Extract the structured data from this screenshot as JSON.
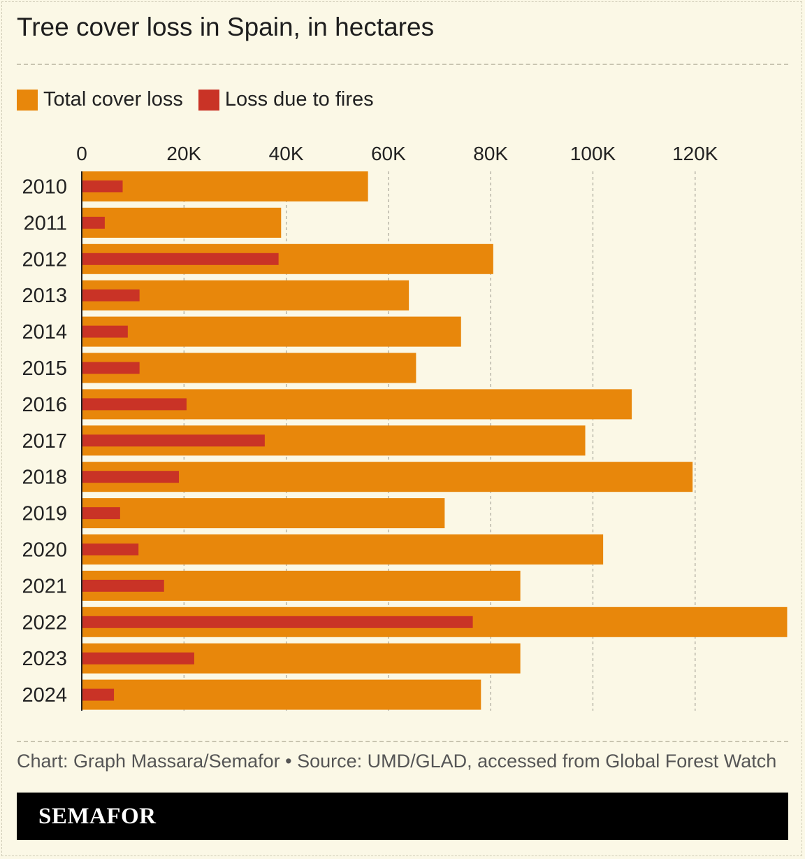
{
  "title": "Tree cover loss in Spain, in hectares",
  "legend": [
    {
      "label": "Total cover loss",
      "color": "#e8870b"
    },
    {
      "label": "Loss due to fires",
      "color": "#c93326"
    }
  ],
  "chart_data": {
    "type": "bar",
    "orientation": "horizontal",
    "title": "Tree cover loss in Spain, in hectares",
    "categories": [
      "2010",
      "2011",
      "2012",
      "2013",
      "2014",
      "2015",
      "2016",
      "2017",
      "2018",
      "2019",
      "2020",
      "2021",
      "2022",
      "2023",
      "2024"
    ],
    "series": [
      {
        "name": "Total cover loss",
        "color": "#e8870b",
        "values": [
          56000,
          39000,
          80500,
          64000,
          74200,
          65400,
          107600,
          98500,
          119500,
          71000,
          102000,
          85800,
          138000,
          85800,
          78100
        ]
      },
      {
        "name": "Loss due to fires",
        "color": "#c93326",
        "values": [
          8000,
          4500,
          38500,
          11300,
          9000,
          11300,
          20500,
          35800,
          19000,
          7500,
          11100,
          16100,
          76500,
          22000,
          6300
        ]
      }
    ],
    "xticks": [
      0,
      20000,
      40000,
      60000,
      80000,
      100000,
      120000
    ],
    "xtick_labels": [
      "0",
      "20K",
      "40K",
      "60K",
      "80K",
      "100K",
      "120K"
    ],
    "xlim": [
      0,
      138000
    ],
    "xlabel": "",
    "ylabel": "",
    "grid": "vertical-dashed",
    "legend_position": "top-left"
  },
  "caption": "Chart: Graph Massara/Semafor • Source: UMD/GLAD, accessed from Global Forest Watch",
  "brand": "SEMAFOR"
}
